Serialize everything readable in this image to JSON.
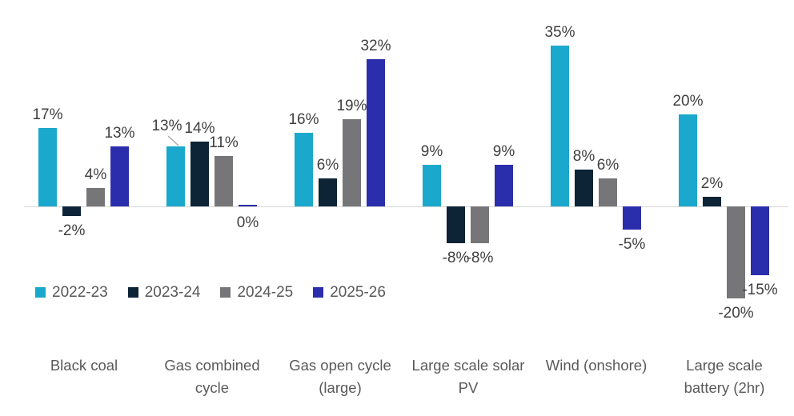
{
  "chart_data": {
    "type": "bar",
    "title": "",
    "categories": [
      {
        "label": "Black coal",
        "lines": [
          "Black coal"
        ]
      },
      {
        "label": "Gas combined cycle",
        "lines": [
          "Gas combined",
          "cycle"
        ]
      },
      {
        "label": "Gas open cycle (large)",
        "lines": [
          "Gas open cycle",
          "(large)"
        ]
      },
      {
        "label": "Large scale solar PV",
        "lines": [
          "Large scale solar",
          "PV"
        ]
      },
      {
        "label": "Wind (onshore)",
        "lines": [
          "Wind (onshore)"
        ]
      },
      {
        "label": "Large scale battery (2hr)",
        "lines": [
          "Large scale",
          "battery (2hr)"
        ]
      }
    ],
    "series": [
      {
        "name": "2022-23",
        "color": "#1AA8CC",
        "values": [
          17,
          13,
          16,
          9,
          35,
          20
        ]
      },
      {
        "name": "2023-24",
        "color": "#0D2336",
        "values": [
          -2,
          14,
          6,
          -8,
          8,
          2
        ]
      },
      {
        "name": "2024-25",
        "color": "#767679",
        "values": [
          4,
          11,
          19,
          -8,
          6,
          -20
        ]
      },
      {
        "name": "2025-26",
        "color": "#2B2EAC",
        "values": [
          13,
          0,
          32,
          9,
          -5,
          -15
        ]
      }
    ],
    "data_labels": {
      "suffix": "%",
      "color": "#404040"
    },
    "legend": {
      "position": "bottom-left",
      "text_color": "#595959"
    },
    "axis": {
      "baseline_color": "#d6d6d6",
      "category_label_color": "#595959"
    },
    "ylim": [
      -20,
      35
    ],
    "grid": false
  }
}
